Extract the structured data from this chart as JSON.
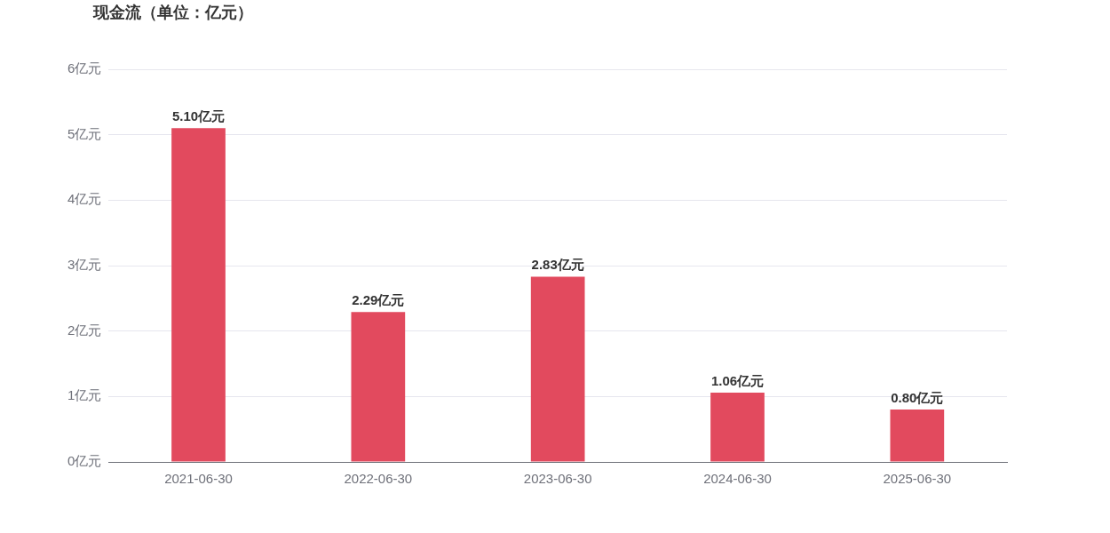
{
  "chart_data": {
    "type": "bar",
    "title": "现金流（单位：亿元）",
    "categories": [
      "2021-06-30",
      "2022-06-30",
      "2023-06-30",
      "2024-06-30",
      "2025-06-30"
    ],
    "values": [
      5.1,
      2.29,
      2.83,
      1.06,
      0.8
    ],
    "value_labels": [
      "5.10亿元",
      "2.29亿元",
      "2.83亿元",
      "1.06亿元",
      "0.80亿元"
    ],
    "color": "#e24a5e",
    "ylim": [
      0,
      6
    ],
    "yticks": [
      {
        "value": 0,
        "label": "0亿元"
      },
      {
        "value": 1,
        "label": "1亿元"
      },
      {
        "value": 2,
        "label": "2亿元"
      },
      {
        "value": 3,
        "label": "3亿元"
      },
      {
        "value": 4,
        "label": "4亿元"
      },
      {
        "value": 5,
        "label": "5亿元"
      },
      {
        "value": 6,
        "label": "6亿元"
      }
    ],
    "grid": "y",
    "legend": false
  }
}
